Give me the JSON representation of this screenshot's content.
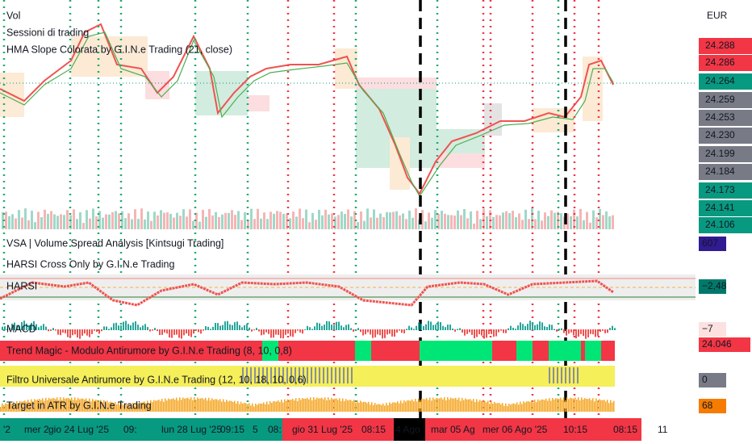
{
  "header": {
    "labels": [
      "Vol",
      "Sessioni di trading",
      "HMA Slope Colorata by G.I.N.e Trading (21, close)"
    ]
  },
  "price_axis": {
    "currency": "EUR",
    "labels": [
      "24.288",
      "24.286",
      "24.264",
      "24.259",
      "24.253",
      "24.230",
      "24.199",
      "24.184",
      "24.173",
      "24.141",
      "24.106"
    ]
  },
  "panels": [
    {
      "title": "VSA | Volume Spread Analysis [Kintsugi Trading]",
      "badge": "607"
    },
    {
      "title": "HARSI Cross Only by G.I.N.e Trading"
    },
    {
      "title": "HARSI",
      "badge": "−2,48"
    },
    {
      "title": "MACD",
      "badge": "−7"
    },
    {
      "title": "Trend Magic - Modulo Antirumore by G.I.N.e Trading (8, 10, 0,8)",
      "badge": "24.046"
    },
    {
      "title": "Filtro Universale Antirumore by G.I.N.e Trading (12, 10, 18, 10, 0,6)",
      "badge": "0"
    },
    {
      "title": "Target in ATR by G.I.N.e Trading",
      "badge": "68"
    }
  ],
  "time_axis": {
    "labels": [
      "'2",
      "mer 2",
      "gio 24 Lug '25",
      "09:",
      "lun 28 Lug '25",
      "09:15",
      "5",
      "08:",
      "gio 31 Lug '25",
      "08:15",
      "4 Ago '",
      "mar 05 Ag",
      "mer 06 Ago '25",
      "10:15",
      "08:15",
      "11"
    ]
  }
}
